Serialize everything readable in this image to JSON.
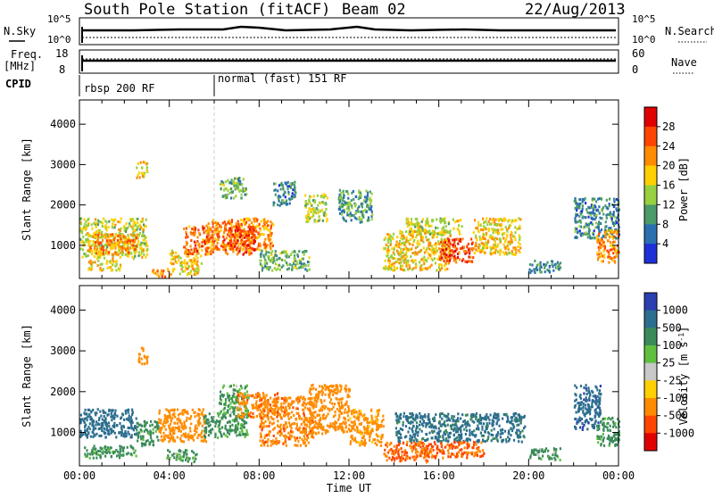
{
  "header": {
    "station": "South Pole Station (fitACF)",
    "beam": "Beam 02",
    "date": "22/Aug/2013"
  },
  "summary_panels": {
    "nsky_label": "N.Sky",
    "nsearch_label": "N.Search",
    "nsky_ticks": [
      "10^5",
      "10^0"
    ],
    "nsearch_ticks": [
      "10^5",
      "10^0"
    ],
    "freq_label_1": "Freq.",
    "freq_label_2": "[MHz]",
    "freq_ticks": [
      "18",
      "8"
    ],
    "nave_label": "Nave",
    "nave_ticks": [
      "60",
      "0"
    ],
    "cpid_label": "CPID",
    "cpid_segments": [
      "rbsp 200 RF",
      "normal (fast) 151 RF"
    ]
  },
  "time_axis": {
    "label": "Time UT",
    "ticks": [
      "00:00",
      "04:00",
      "08:00",
      "12:00",
      "16:00",
      "20:00",
      "00:00"
    ]
  },
  "chart_data": [
    {
      "type": "heatmap",
      "panel": "power",
      "xlabel": "Time UT",
      "ylabel": "Slant Range [km]",
      "xlim": [
        0,
        24
      ],
      "ylim": [
        180,
        4600
      ],
      "yticks": [
        1000,
        2000,
        3000,
        4000
      ],
      "colorbar": {
        "label": "Power [dB]",
        "ticks": [
          "28",
          "24",
          "20",
          "16",
          "12",
          "8",
          "4"
        ],
        "colors": [
          "#e00000",
          "#ff4500",
          "#ff8c00",
          "#ffd000",
          "#98d040",
          "#4a9a6a",
          "#2a6fb0",
          "#1f2fd8"
        ]
      },
      "patches": [
        {
          "t": [
            0.0,
            3.0
          ],
          "r": [
            700,
            1700
          ],
          "v": 16
        },
        {
          "t": [
            0.4,
            2.5
          ],
          "r": [
            800,
            1300
          ],
          "v": 22
        },
        {
          "t": [
            0.3,
            1.8
          ],
          "r": [
            400,
            650
          ],
          "v": 18
        },
        {
          "t": [
            2.5,
            3.0
          ],
          "r": [
            2700,
            3100
          ],
          "v": 18
        },
        {
          "t": [
            3.2,
            4.0
          ],
          "r": [
            250,
            450
          ],
          "v": 22
        },
        {
          "t": [
            4.0,
            5.4
          ],
          "r": [
            300,
            900
          ],
          "v": 18
        },
        {
          "t": [
            4.6,
            6.0
          ],
          "r": [
            800,
            1500
          ],
          "v": 24
        },
        {
          "t": [
            5.6,
            8.6
          ],
          "r": [
            900,
            1700
          ],
          "v": 22
        },
        {
          "t": [
            6.2,
            7.4
          ],
          "r": [
            2200,
            2700
          ],
          "v": 12
        },
        {
          "t": [
            6.4,
            7.8
          ],
          "r": [
            800,
            1500
          ],
          "v": 26
        },
        {
          "t": [
            8.0,
            10.2
          ],
          "r": [
            400,
            900
          ],
          "v": 12
        },
        {
          "t": [
            8.6,
            9.6
          ],
          "r": [
            2000,
            2600
          ],
          "v": 8
        },
        {
          "t": [
            10.0,
            11.0
          ],
          "r": [
            1600,
            2300
          ],
          "v": 14
        },
        {
          "t": [
            11.5,
            13.0
          ],
          "r": [
            1600,
            2400
          ],
          "v": 10
        },
        {
          "t": [
            13.5,
            16.5
          ],
          "r": [
            400,
            1400
          ],
          "v": 18
        },
        {
          "t": [
            14.5,
            17.0
          ],
          "r": [
            1300,
            1700
          ],
          "v": 16
        },
        {
          "t": [
            16.0,
            17.5
          ],
          "r": [
            600,
            1200
          ],
          "v": 26
        },
        {
          "t": [
            17.5,
            19.6
          ],
          "r": [
            800,
            1700
          ],
          "v": 18
        },
        {
          "t": [
            20.0,
            21.4
          ],
          "r": [
            350,
            650
          ],
          "v": 8
        },
        {
          "t": [
            22.0,
            24.0
          ],
          "r": [
            1200,
            2200
          ],
          "v": 8
        },
        {
          "t": [
            23.0,
            24.0
          ],
          "r": [
            600,
            1400
          ],
          "v": 22
        }
      ]
    },
    {
      "type": "heatmap",
      "panel": "velocity",
      "xlabel": "Time UT",
      "ylabel": "Slant Range [km]",
      "xlim": [
        0,
        24
      ],
      "ylim": [
        180,
        4600
      ],
      "yticks": [
        1000,
        2000,
        3000,
        4000
      ],
      "colorbar": {
        "label": "Velocity [m s^-1]",
        "ticks": [
          "1000",
          "500",
          "100",
          "25",
          "-25",
          "-100",
          "-500",
          "-1000"
        ],
        "colors": [
          "#2a3fb0",
          "#2c6e8f",
          "#3a8a5a",
          "#5fc040",
          "#c8c8c8",
          "#ffd000",
          "#ff8c00",
          "#ff4500",
          "#e00000"
        ]
      },
      "patches": [
        {
          "t": [
            0.0,
            2.5
          ],
          "r": [
            900,
            1600
          ],
          "v": 800
        },
        {
          "t": [
            0.2,
            2.5
          ],
          "r": [
            400,
            700
          ],
          "v": 200
        },
        {
          "t": [
            2.5,
            3.5
          ],
          "r": [
            700,
            1300
          ],
          "v": 200
        },
        {
          "t": [
            2.6,
            3.0
          ],
          "r": [
            2700,
            3100
          ],
          "v": -300
        },
        {
          "t": [
            3.5,
            5.6
          ],
          "r": [
            800,
            1600
          ],
          "v": -300
        },
        {
          "t": [
            3.8,
            5.2
          ],
          "r": [
            300,
            600
          ],
          "v": 150
        },
        {
          "t": [
            5.5,
            7.5
          ],
          "r": [
            900,
            1500
          ],
          "v": 200
        },
        {
          "t": [
            6.2,
            7.5
          ],
          "r": [
            1500,
            2200
          ],
          "v": 150
        },
        {
          "t": [
            7.0,
            8.8
          ],
          "r": [
            1400,
            2000
          ],
          "v": -400
        },
        {
          "t": [
            8.0,
            10.4
          ],
          "r": [
            700,
            1900
          ],
          "v": -400
        },
        {
          "t": [
            10.2,
            12.0
          ],
          "r": [
            1000,
            2200
          ],
          "v": -300
        },
        {
          "t": [
            12.0,
            13.5
          ],
          "r": [
            700,
            1600
          ],
          "v": -200
        },
        {
          "t": [
            13.5,
            15.5
          ],
          "r": [
            300,
            800
          ],
          "v": -500
        },
        {
          "t": [
            14.0,
            19.8
          ],
          "r": [
            800,
            1500
          ],
          "v": 600
        },
        {
          "t": [
            15.2,
            18.0
          ],
          "r": [
            400,
            800
          ],
          "v": -500
        },
        {
          "t": [
            20.0,
            21.4
          ],
          "r": [
            350,
            650
          ],
          "v": 150
        },
        {
          "t": [
            22.0,
            23.2
          ],
          "r": [
            1100,
            2200
          ],
          "v": 900
        },
        {
          "t": [
            23.0,
            24.0
          ],
          "r": [
            700,
            1400
          ],
          "v": 200
        }
      ]
    }
  ]
}
